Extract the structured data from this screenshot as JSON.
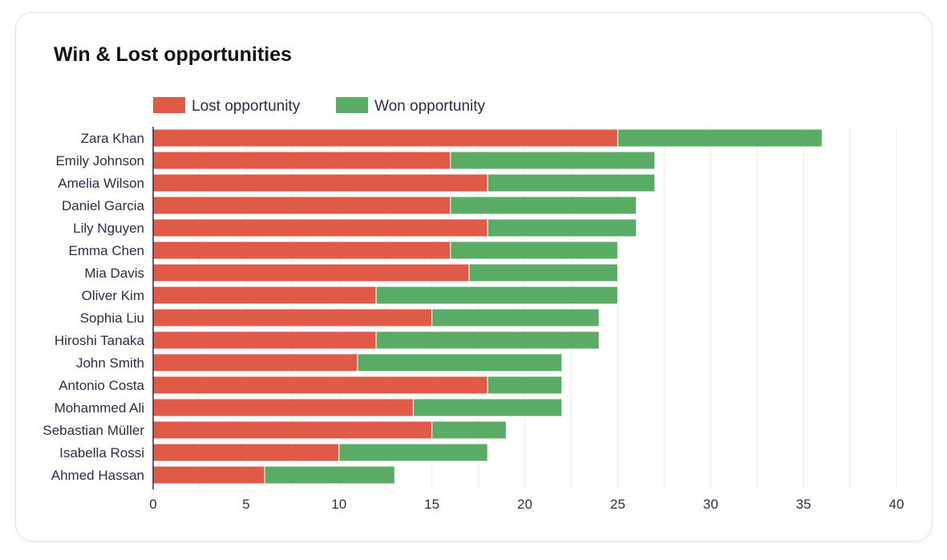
{
  "chart_data": {
    "type": "bar",
    "orientation": "horizontal",
    "stacked": true,
    "title": "Win & Lost opportunities",
    "categories": [
      "Zara Khan",
      "Emily Johnson",
      "Amelia Wilson",
      "Daniel Garcia",
      "Lily Nguyen",
      "Emma Chen",
      "Mia Davis",
      "Oliver Kim",
      "Sophia Liu",
      "Hiroshi Tanaka",
      "John Smith",
      "Antonio Costa",
      "Mohammed Ali",
      "Sebastian Müller",
      "Isabella Rossi",
      "Ahmed Hassan"
    ],
    "series": [
      {
        "name": "Lost opportunity",
        "color": "#e05a48",
        "values": [
          25,
          16,
          18,
          16,
          18,
          16,
          17,
          12,
          15,
          12,
          11,
          18,
          14,
          15,
          10,
          6
        ]
      },
      {
        "name": "Won opportunity",
        "color": "#5aab66",
        "values": [
          11,
          11,
          9,
          10,
          8,
          9,
          8,
          13,
          9,
          12,
          11,
          4,
          8,
          4,
          8,
          7
        ]
      }
    ],
    "xlim": [
      0,
      40
    ],
    "xticks": [
      "0",
      "5",
      "10",
      "15",
      "20",
      "25",
      "30",
      "35",
      "40"
    ],
    "grid": true,
    "legend": "top-left"
  }
}
